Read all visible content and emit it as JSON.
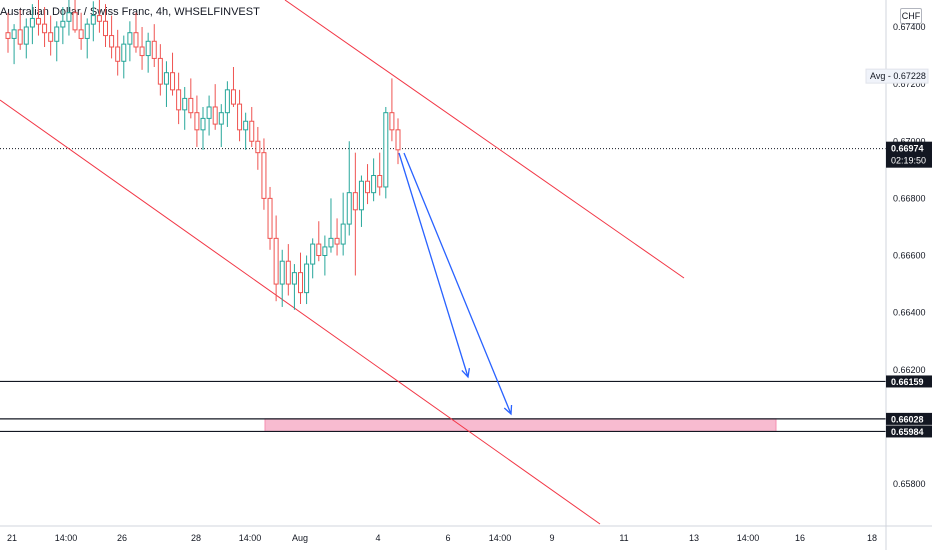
{
  "header": {
    "title": "Australian Dollar / Swiss Franc, 4h, WHSELFINVEST",
    "currency": "CHF"
  },
  "chart_data": {
    "type": "candlestick",
    "ylim": [
      0.6568,
      0.6744
    ],
    "y_ticks": [
      "0.67400",
      "0.67200",
      "0.67000",
      "0.66800",
      "0.66600",
      "0.66400",
      "0.66200",
      "0.65800"
    ],
    "y_tick_values": [
      0.674,
      0.672,
      0.67,
      0.668,
      0.666,
      0.664,
      0.662,
      0.658
    ],
    "x_ticks": [
      "21",
      "14:00",
      "26",
      "28",
      "14:00",
      "Aug",
      "4",
      "6",
      "14:00",
      "9",
      "11",
      "13",
      "14:00",
      "16",
      "18"
    ],
    "avg_label": "Avg",
    "avg_value": "0.67228",
    "current_price": "0.66974",
    "countdown": "02:19:50",
    "levels": [
      {
        "value": 0.66159,
        "label": "0.66159"
      },
      {
        "value": 0.66028,
        "label": "0.66028"
      },
      {
        "value": 0.65984,
        "label": "0.65984"
      }
    ],
    "zone": {
      "top": 0.66028,
      "bottom": 0.65984
    },
    "candles": [
      [
        0.6738,
        0.6745,
        0.6731,
        0.6736
      ],
      [
        0.6736,
        0.6741,
        0.6727,
        0.6739
      ],
      [
        0.6739,
        0.6746,
        0.6732,
        0.6734
      ],
      [
        0.6734,
        0.6743,
        0.6729,
        0.674
      ],
      [
        0.674,
        0.6748,
        0.6734,
        0.6743
      ],
      [
        0.6743,
        0.675,
        0.6737,
        0.6741
      ],
      [
        0.6741,
        0.6747,
        0.6733,
        0.6738
      ],
      [
        0.6738,
        0.6744,
        0.673,
        0.6735
      ],
      [
        0.6735,
        0.6742,
        0.6728,
        0.674
      ],
      [
        0.674,
        0.6747,
        0.6734,
        0.6742
      ],
      [
        0.6742,
        0.675,
        0.6737,
        0.6745
      ],
      [
        0.6745,
        0.6752,
        0.6738,
        0.6739
      ],
      [
        0.6739,
        0.6745,
        0.6732,
        0.6736
      ],
      [
        0.6736,
        0.6743,
        0.6729,
        0.6741
      ],
      [
        0.6741,
        0.6749,
        0.6735,
        0.6744
      ],
      [
        0.6744,
        0.6751,
        0.6738,
        0.6742
      ],
      [
        0.6742,
        0.6748,
        0.6733,
        0.6737
      ],
      [
        0.6737,
        0.6744,
        0.6729,
        0.6733
      ],
      [
        0.6733,
        0.6739,
        0.6723,
        0.6728
      ],
      [
        0.6728,
        0.6737,
        0.6722,
        0.6734
      ],
      [
        0.6734,
        0.6742,
        0.6728,
        0.6738
      ],
      [
        0.6738,
        0.6745,
        0.6731,
        0.6733
      ],
      [
        0.6733,
        0.674,
        0.6725,
        0.673
      ],
      [
        0.673,
        0.6738,
        0.6724,
        0.6735
      ],
      [
        0.6735,
        0.6741,
        0.6726,
        0.6729
      ],
      [
        0.6729,
        0.6734,
        0.6716,
        0.672
      ],
      [
        0.672,
        0.6728,
        0.6712,
        0.6724
      ],
      [
        0.6724,
        0.6731,
        0.6716,
        0.6718
      ],
      [
        0.6718,
        0.6724,
        0.6706,
        0.6711
      ],
      [
        0.6711,
        0.6719,
        0.6704,
        0.6715
      ],
      [
        0.6715,
        0.6722,
        0.6708,
        0.671
      ],
      [
        0.671,
        0.6716,
        0.6698,
        0.6704
      ],
      [
        0.6704,
        0.6712,
        0.6697,
        0.6708
      ],
      [
        0.6708,
        0.6716,
        0.6702,
        0.6712
      ],
      [
        0.6712,
        0.672,
        0.6704,
        0.6706
      ],
      [
        0.6706,
        0.6713,
        0.6698,
        0.671
      ],
      [
        0.671,
        0.6721,
        0.6705,
        0.6718
      ],
      [
        0.6718,
        0.6726,
        0.6712,
        0.6713
      ],
      [
        0.6713,
        0.6718,
        0.67,
        0.6704
      ],
      [
        0.6704,
        0.671,
        0.6697,
        0.6707
      ],
      [
        0.6707,
        0.6712,
        0.6698,
        0.67
      ],
      [
        0.67,
        0.6705,
        0.669,
        0.6696
      ],
      [
        0.6696,
        0.6701,
        0.6676,
        0.668
      ],
      [
        0.668,
        0.6684,
        0.6662,
        0.6666
      ],
      [
        0.6666,
        0.6674,
        0.6644,
        0.665
      ],
      [
        0.665,
        0.6662,
        0.6642,
        0.6658
      ],
      [
        0.6658,
        0.6664,
        0.6646,
        0.665
      ],
      [
        0.665,
        0.6657,
        0.6641,
        0.6654
      ],
      [
        0.6654,
        0.6661,
        0.6643,
        0.6647
      ],
      [
        0.6647,
        0.666,
        0.6643,
        0.6657
      ],
      [
        0.6657,
        0.6666,
        0.6652,
        0.6664
      ],
      [
        0.6664,
        0.6672,
        0.6658,
        0.666
      ],
      [
        0.666,
        0.6667,
        0.6653,
        0.6663
      ],
      [
        0.6663,
        0.668,
        0.6661,
        0.6666
      ],
      [
        0.6666,
        0.6673,
        0.666,
        0.6664
      ],
      [
        0.6664,
        0.6682,
        0.666,
        0.6671
      ],
      [
        0.6671,
        0.67,
        0.6667,
        0.6682
      ],
      [
        0.6682,
        0.6696,
        0.6653,
        0.6676
      ],
      [
        0.6676,
        0.6688,
        0.667,
        0.6686
      ],
      [
        0.6686,
        0.6692,
        0.6678,
        0.6682
      ],
      [
        0.6682,
        0.6694,
        0.6679,
        0.6688
      ],
      [
        0.6688,
        0.6696,
        0.6681,
        0.6684
      ],
      [
        0.6684,
        0.6712,
        0.668,
        0.671
      ],
      [
        0.671,
        0.6722,
        0.67,
        0.6704
      ],
      [
        0.6704,
        0.6708,
        0.6692,
        0.6697
      ]
    ]
  }
}
